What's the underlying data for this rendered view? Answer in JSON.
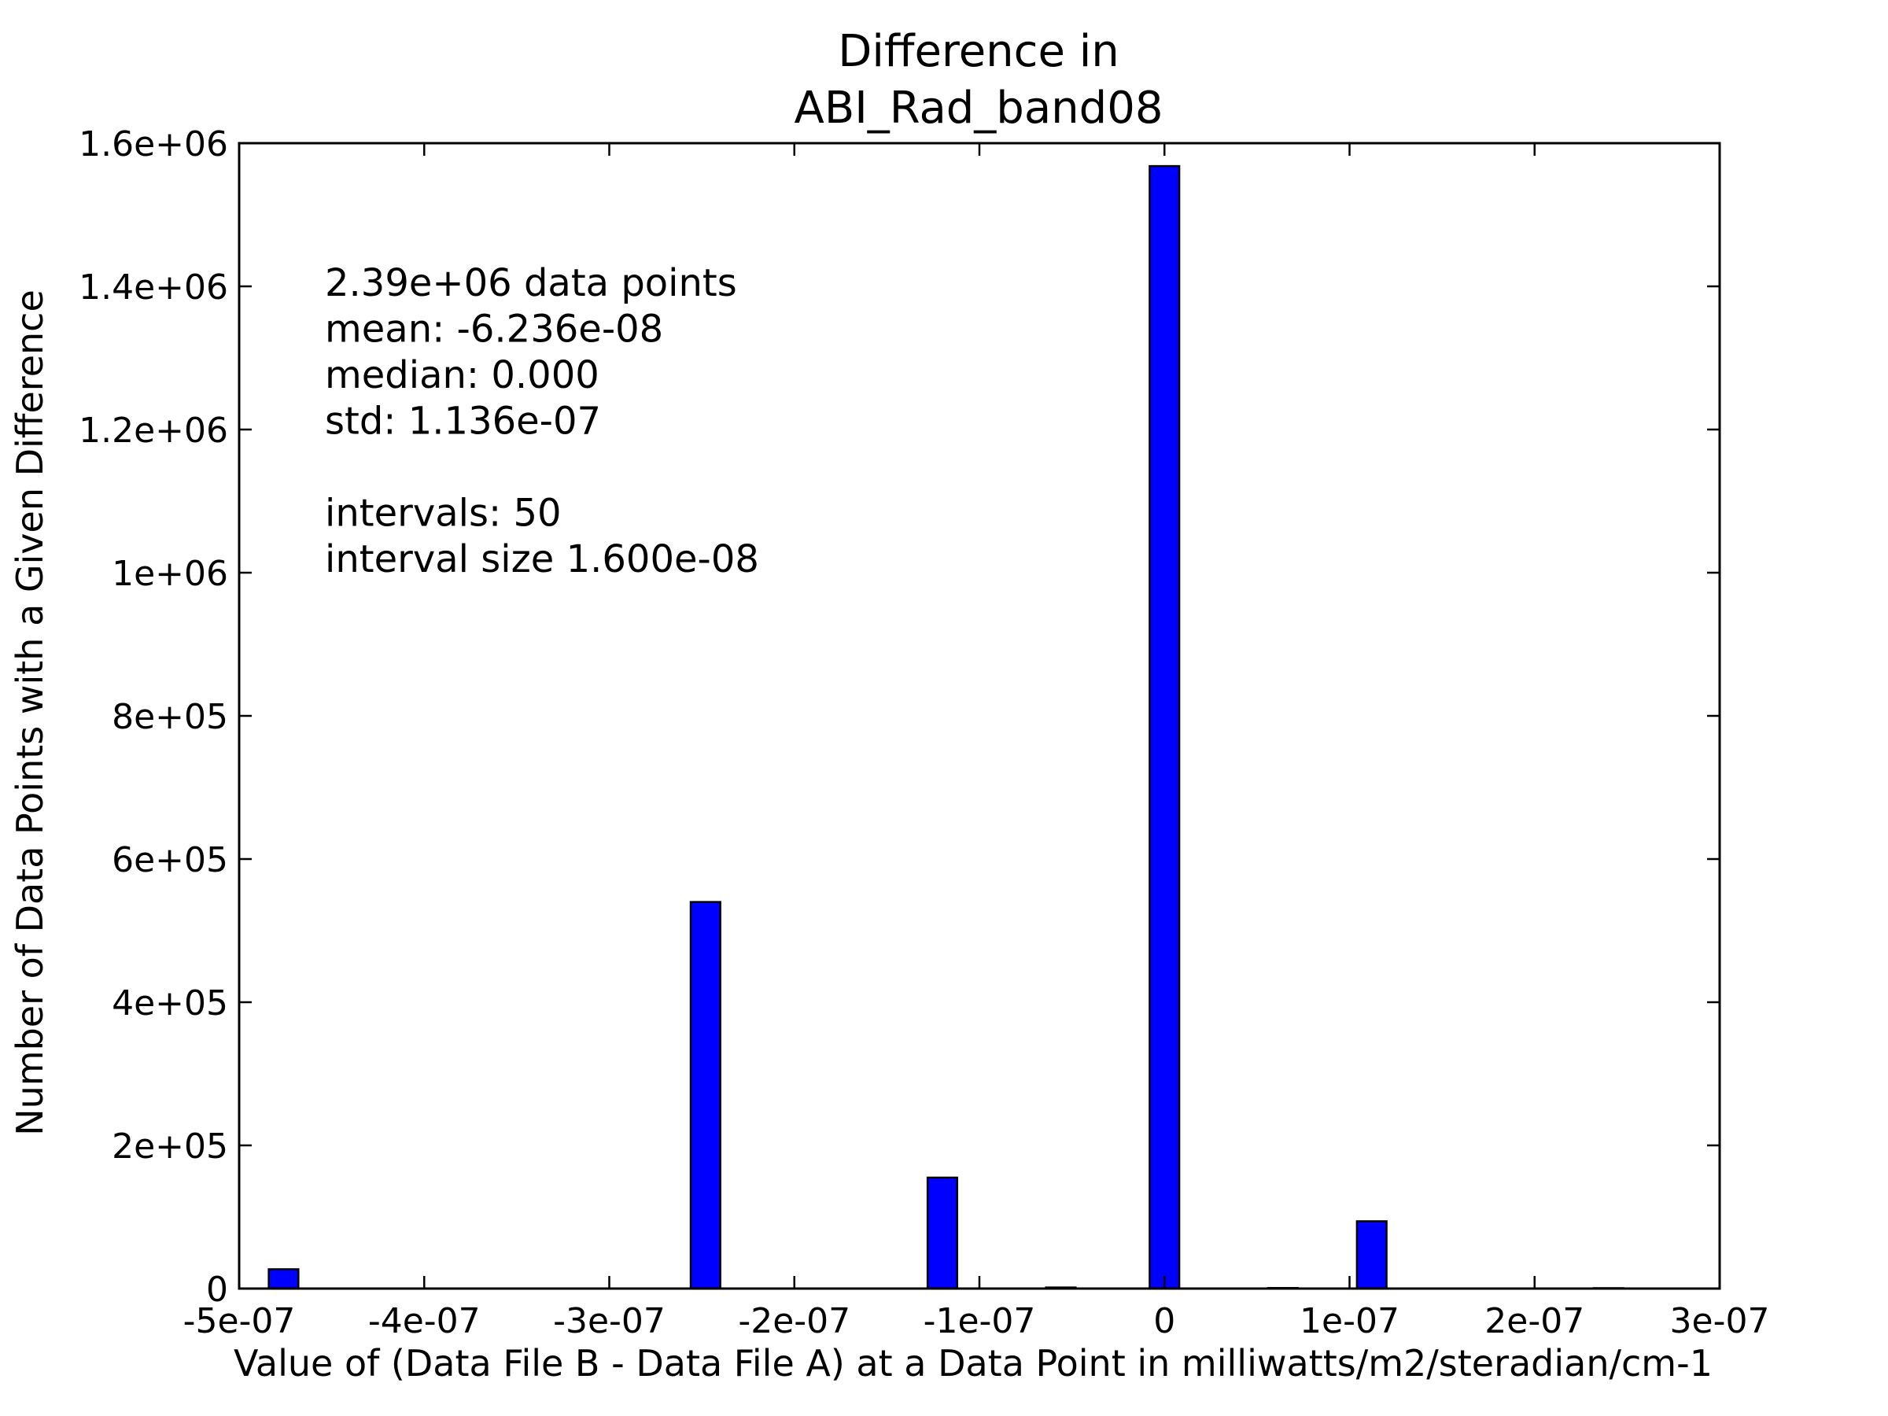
{
  "chart_data": {
    "type": "bar",
    "title_lines": [
      "Difference in",
      "ABI_Rad_band08"
    ],
    "xlabel": "Value of (Data File B - Data File A) at a Data Point in milliwatts/m2/steradian/cm-1",
    "ylabel": "Number of Data Points with a Given Difference",
    "xlim": [
      -5e-07,
      3e-07
    ],
    "ylim": [
      0,
      1600000
    ],
    "x_ticks": [
      -5e-07,
      -4e-07,
      -3e-07,
      -2e-07,
      -1e-07,
      0,
      1e-07,
      2e-07,
      3e-07
    ],
    "x_tick_labels": [
      "-5e-07",
      "-4e-07",
      "-3e-07",
      "-2e-07",
      "-1e-07",
      "0",
      "1e-07",
      "2e-07",
      "3e-07"
    ],
    "y_ticks": [
      0,
      200000,
      400000,
      600000,
      800000,
      1000000,
      1200000,
      1400000,
      1600000
    ],
    "y_tick_labels": [
      "0",
      "2e+05",
      "4e+05",
      "6e+05",
      "8e+05",
      "1e+06",
      "1.2e+06",
      "1.4e+06",
      "1.6e+06"
    ],
    "bin_width": 1.6e-08,
    "bars": [
      {
        "x_start": -4.84e-07,
        "value": 27000
      },
      {
        "x_start": -2.56e-07,
        "value": 540000
      },
      {
        "x_start": -1.28e-07,
        "value": 155000
      },
      {
        "x_start": -6.4e-08,
        "value": 1500
      },
      {
        "x_start": -8e-09,
        "value": 1568000
      },
      {
        "x_start": 5.6e-08,
        "value": 800
      },
      {
        "x_start": 1.04e-07,
        "value": 94000
      },
      {
        "x_start": 2.32e-07,
        "value": 600
      }
    ],
    "stats_text": [
      "2.39e+06 data points",
      "mean: -6.236e-08",
      "median: 0.000",
      "std: 1.136e-07",
      "",
      "intervals: 50",
      "interval size 1.600e-08"
    ],
    "grid": false,
    "legend": "none",
    "colors": {
      "bar_fill": "#0000ff",
      "bar_edge": "#000000"
    }
  }
}
